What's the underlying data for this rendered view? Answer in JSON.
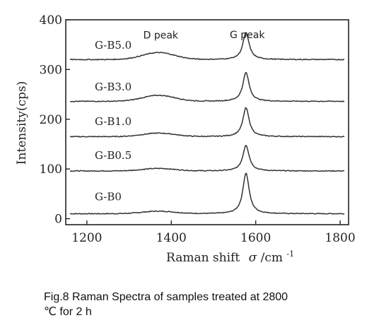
{
  "chart_data": {
    "type": "line",
    "xlabel_main": "Raman shift",
    "xlabel_symbol": "σ",
    "xlabel_unit": "/cm",
    "xlabel_sup": "-1",
    "ylabel": "Intensity(cps)",
    "xlim": [
      1150,
      1820
    ],
    "ylim": [
      -12,
      400
    ],
    "x_ticks": [
      1200,
      1400,
      1600,
      1800
    ],
    "y_ticks": [
      0,
      100,
      200,
      300,
      400
    ],
    "grid": false,
    "annotations": [
      {
        "text": "D peak",
        "x": 1375,
        "y": 362
      },
      {
        "text": "G peak",
        "x": 1580,
        "y": 363
      }
    ],
    "series": [
      {
        "name": "G-B0",
        "baseline": 10,
        "d_peak": 5,
        "g_peak": 82,
        "label_y": 37
      },
      {
        "name": "G-B0.5",
        "baseline": 96,
        "d_peak": 5,
        "g_peak": 52,
        "label_y": 120
      },
      {
        "name": "G-B1.0",
        "baseline": 165,
        "d_peak": 7,
        "g_peak": 58,
        "label_y": 188
      },
      {
        "name": "G-B3.0",
        "baseline": 236,
        "d_peak": 12,
        "g_peak": 58,
        "label_y": 258
      },
      {
        "name": "G-B5.0",
        "baseline": 320,
        "d_peak": 14,
        "g_peak": 54,
        "label_y": 342
      }
    ],
    "d_center": 1370,
    "g_center": 1577,
    "x_start": 1160,
    "x_end": 1810
  },
  "caption": {
    "line1": "Fig.8 Raman Spectra of samples treated at 2800",
    "line2": "℃ for 2 h"
  },
  "colors": {
    "line": "#333333",
    "axis": "#222222"
  }
}
